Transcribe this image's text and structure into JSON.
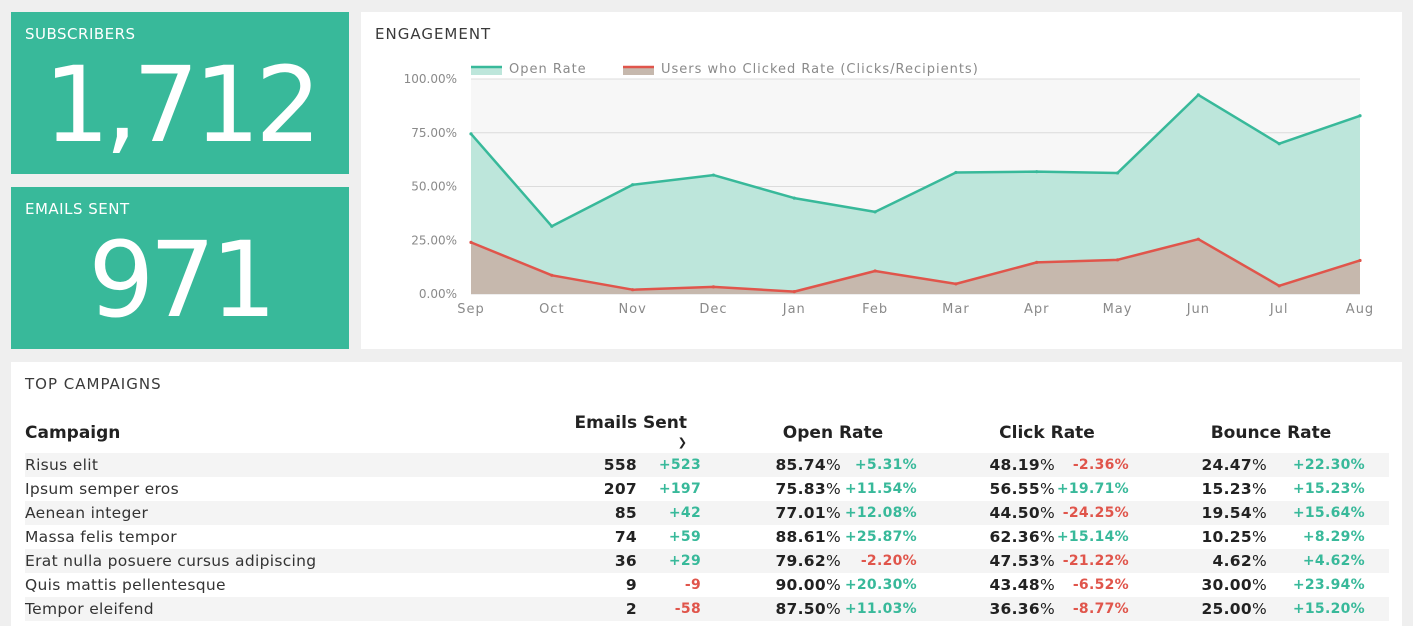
{
  "kpis": {
    "subscribers": {
      "title": "SUBSCRIBERS",
      "value": "1,712"
    },
    "emails_sent": {
      "title": "EMAILS SENT",
      "value": "971"
    }
  },
  "engagement": {
    "title": "ENGAGEMENT"
  },
  "chart_data": {
    "type": "area",
    "x": [
      "Sep",
      "Oct",
      "Nov",
      "Dec",
      "Jan",
      "Feb",
      "Mar",
      "Apr",
      "May",
      "Jun",
      "Jul",
      "Aug"
    ],
    "y_ticks": [
      "0.00%",
      "25.00%",
      "50.00%",
      "75.00%",
      "100.00%"
    ],
    "ylim": [
      0,
      100
    ],
    "legend_position": "top",
    "series": [
      {
        "name": "Open Rate",
        "color": "#38b99a",
        "fill": "#bde6db",
        "values": [
          74.5,
          31.5,
          50.8,
          55.3,
          44.6,
          38.2,
          56.5,
          56.9,
          56.3,
          92.6,
          69.9,
          82.9
        ]
      },
      {
        "name": "Users who Clicked Rate (Clicks/Recipients)",
        "color": "#e0554b",
        "fill": "#c6b8ad",
        "values": [
          24.0,
          8.7,
          2.0,
          3.3,
          1.1,
          10.7,
          4.7,
          14.7,
          15.9,
          25.5,
          3.8,
          15.6
        ]
      }
    ]
  },
  "campaigns": {
    "title": "TOP CAMPAIGNS",
    "headers": {
      "campaign": "Campaign",
      "emails_sent": "Emails Sent",
      "open_rate": "Open Rate",
      "click_rate": "Click Rate",
      "bounce_rate": "Bounce Rate"
    },
    "sort_icon": "chevron-down-icon",
    "rows": [
      {
        "name": "Risus elit",
        "sent": "558",
        "sent_delta": "+523",
        "open": "85.74",
        "open_delta": "+5.31%",
        "click": "48.19",
        "click_delta": "-2.36%",
        "bounce": "24.47",
        "bounce_delta": "+22.30%"
      },
      {
        "name": "Ipsum semper eros",
        "sent": "207",
        "sent_delta": "+197",
        "open": "75.83",
        "open_delta": "+11.54%",
        "click": "56.55",
        "click_delta": "+19.71%",
        "bounce": "15.23",
        "bounce_delta": "+15.23%"
      },
      {
        "name": "Aenean integer",
        "sent": "85",
        "sent_delta": "+42",
        "open": "77.01",
        "open_delta": "+12.08%",
        "click": "44.50",
        "click_delta": "-24.25%",
        "bounce": "19.54",
        "bounce_delta": "+15.64%"
      },
      {
        "name": "Massa felis tempor",
        "sent": "74",
        "sent_delta": "+59",
        "open": "88.61",
        "open_delta": "+25.87%",
        "click": "62.36",
        "click_delta": "+15.14%",
        "bounce": "10.25",
        "bounce_delta": "+8.29%"
      },
      {
        "name": "Erat nulla posuere cursus adipiscing",
        "sent": "36",
        "sent_delta": "+29",
        "open": "79.62",
        "open_delta": "-2.20%",
        "click": "47.53",
        "click_delta": "-21.22%",
        "bounce": "4.62",
        "bounce_delta": "+4.62%"
      },
      {
        "name": "Quis mattis pellentesque",
        "sent": "9",
        "sent_delta": "-9",
        "open": "90.00",
        "open_delta": "+20.30%",
        "click": "43.48",
        "click_delta": "-6.52%",
        "bounce": "30.00",
        "bounce_delta": "+23.94%"
      },
      {
        "name": "Tempor eleifend",
        "sent": "2",
        "sent_delta": "-58",
        "open": "87.50",
        "open_delta": "+11.03%",
        "click": "36.36",
        "click_delta": "-8.77%",
        "bounce": "25.00",
        "bounce_delta": "+15.20%"
      }
    ]
  }
}
